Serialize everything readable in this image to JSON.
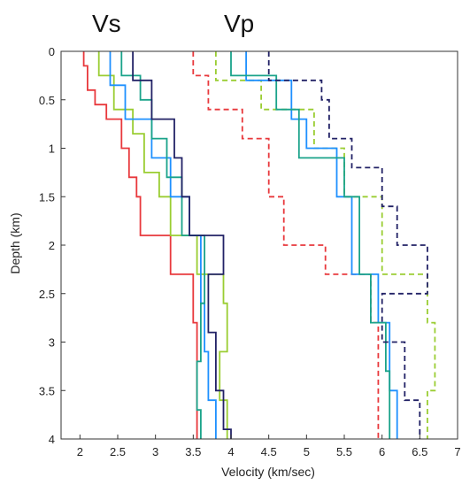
{
  "chart_data": {
    "type": "line",
    "annotations": [
      {
        "text": "Vs",
        "series_group": "Vs"
      },
      {
        "text": "Vp",
        "series_group": "Vp"
      }
    ],
    "xlabel": "Velocity (km/sec)",
    "ylabel": "Depth (km)",
    "xlim": [
      1.75,
      7
    ],
    "ylim": [
      0,
      4
    ],
    "y_inverted": true,
    "x_ticks": [
      "2",
      "2.5",
      "3",
      "3.5",
      "4",
      "4.5",
      "5",
      "5.5",
      "6",
      "6.5",
      "7"
    ],
    "y_ticks": [
      "0",
      "0.5",
      "1",
      "1.5",
      "2",
      "2.5",
      "3",
      "3.5",
      "4"
    ],
    "grid": false,
    "legend": "none",
    "series": [
      {
        "group": "Vs",
        "color": "#e8383c",
        "dashed": false,
        "steps": [
          [
            0,
            0.15,
            2.05
          ],
          [
            0.15,
            0.4,
            2.1
          ],
          [
            0.4,
            0.55,
            2.2
          ],
          [
            0.55,
            0.7,
            2.35
          ],
          [
            0.7,
            1.0,
            2.55
          ],
          [
            1.0,
            1.3,
            2.65
          ],
          [
            1.3,
            1.5,
            2.75
          ],
          [
            1.5,
            1.9,
            2.8
          ],
          [
            1.9,
            2.3,
            3.2
          ],
          [
            2.3,
            2.8,
            3.5
          ],
          [
            2.8,
            4.0,
            3.55
          ]
        ]
      },
      {
        "group": "Vs",
        "color": "#9acd32",
        "dashed": false,
        "steps": [
          [
            0,
            0.25,
            2.25
          ],
          [
            0.25,
            0.6,
            2.45
          ],
          [
            0.6,
            0.85,
            2.7
          ],
          [
            0.85,
            1.25,
            2.85
          ],
          [
            1.25,
            1.5,
            3.05
          ],
          [
            1.5,
            1.9,
            3.2
          ],
          [
            1.9,
            2.3,
            3.55
          ],
          [
            2.3,
            2.6,
            3.9
          ],
          [
            2.6,
            3.1,
            3.95
          ],
          [
            3.1,
            3.6,
            3.85
          ],
          [
            3.6,
            4.0,
            3.95
          ]
        ]
      },
      {
        "group": "Vs",
        "color": "#1e90ff",
        "dashed": false,
        "steps": [
          [
            0,
            0.35,
            2.4
          ],
          [
            0.35,
            0.7,
            2.6
          ],
          [
            0.7,
            1.1,
            2.95
          ],
          [
            1.1,
            1.5,
            3.2
          ],
          [
            1.5,
            1.9,
            3.45
          ],
          [
            1.9,
            2.6,
            3.6
          ],
          [
            2.6,
            3.1,
            3.65
          ],
          [
            3.1,
            3.6,
            3.7
          ],
          [
            3.6,
            4.0,
            3.8
          ]
        ]
      },
      {
        "group": "Vs",
        "color": "#1aa38a",
        "dashed": false,
        "steps": [
          [
            0,
            0.25,
            2.55
          ],
          [
            0.25,
            0.5,
            2.8
          ],
          [
            0.5,
            0.9,
            2.95
          ],
          [
            0.9,
            1.3,
            3.15
          ],
          [
            1.3,
            1.9,
            3.35
          ],
          [
            1.9,
            2.6,
            3.65
          ],
          [
            2.6,
            3.2,
            3.6
          ],
          [
            3.2,
            3.7,
            3.55
          ],
          [
            3.7,
            4.0,
            3.6
          ]
        ]
      },
      {
        "group": "Vs",
        "color": "#222266",
        "dashed": false,
        "steps": [
          [
            0,
            0.3,
            2.7
          ],
          [
            0.3,
            0.7,
            2.95
          ],
          [
            0.7,
            1.1,
            3.25
          ],
          [
            1.1,
            1.5,
            3.35
          ],
          [
            1.5,
            1.9,
            3.45
          ],
          [
            1.9,
            2.3,
            3.9
          ],
          [
            2.3,
            2.9,
            3.7
          ],
          [
            2.9,
            3.5,
            3.8
          ],
          [
            3.5,
            3.9,
            3.9
          ],
          [
            3.9,
            4.0,
            4.0
          ]
        ]
      },
      {
        "group": "Vp",
        "color": "#e8383c",
        "dashed": true,
        "steps": [
          [
            0,
            0.25,
            3.5
          ],
          [
            0.25,
            0.6,
            3.7
          ],
          [
            0.6,
            0.9,
            4.15
          ],
          [
            0.9,
            1.5,
            4.5
          ],
          [
            1.5,
            2.0,
            4.7
          ],
          [
            2.0,
            2.3,
            5.25
          ],
          [
            2.3,
            2.8,
            5.85
          ],
          [
            2.8,
            4.0,
            5.95
          ]
        ]
      },
      {
        "group": "Vp",
        "color": "#9acd32",
        "dashed": true,
        "steps": [
          [
            0,
            0.3,
            3.8
          ],
          [
            0.3,
            0.6,
            4.4
          ],
          [
            0.6,
            1.0,
            5.1
          ],
          [
            1.0,
            1.5,
            5.5
          ],
          [
            1.5,
            2.3,
            6.0
          ],
          [
            2.3,
            2.8,
            6.6
          ],
          [
            2.8,
            3.5,
            6.7
          ],
          [
            3.5,
            4.0,
            6.6
          ]
        ]
      },
      {
        "group": "Vp",
        "color": "#1e90ff",
        "dashed": false,
        "steps": [
          [
            0,
            0.3,
            4.2
          ],
          [
            0.3,
            0.7,
            4.8
          ],
          [
            0.7,
            1.0,
            5.0
          ],
          [
            1.0,
            1.5,
            5.4
          ],
          [
            1.5,
            2.3,
            5.6
          ],
          [
            2.3,
            2.8,
            5.95
          ],
          [
            2.8,
            3.5,
            6.1
          ],
          [
            3.5,
            4.0,
            6.2
          ]
        ]
      },
      {
        "group": "Vp",
        "color": "#1aa38a",
        "dashed": false,
        "steps": [
          [
            0,
            0.25,
            4.0
          ],
          [
            0.25,
            0.6,
            4.6
          ],
          [
            0.6,
            1.1,
            4.9
          ],
          [
            1.1,
            1.5,
            5.5
          ],
          [
            1.5,
            2.3,
            5.7
          ],
          [
            2.3,
            2.8,
            5.85
          ],
          [
            2.8,
            3.3,
            6.05
          ],
          [
            3.3,
            4.0,
            6.1
          ]
        ]
      },
      {
        "group": "Vp",
        "color": "#222266",
        "dashed": true,
        "steps": [
          [
            0,
            0.3,
            4.5
          ],
          [
            0.3,
            0.5,
            5.2
          ],
          [
            0.5,
            0.9,
            5.3
          ],
          [
            0.9,
            1.2,
            5.6
          ],
          [
            1.2,
            1.6,
            6.0
          ],
          [
            1.6,
            2.0,
            6.2
          ],
          [
            2.0,
            2.5,
            6.6
          ],
          [
            2.5,
            3.0,
            6.0
          ],
          [
            3.0,
            3.6,
            6.3
          ],
          [
            3.6,
            4.0,
            6.5
          ]
        ]
      }
    ]
  }
}
